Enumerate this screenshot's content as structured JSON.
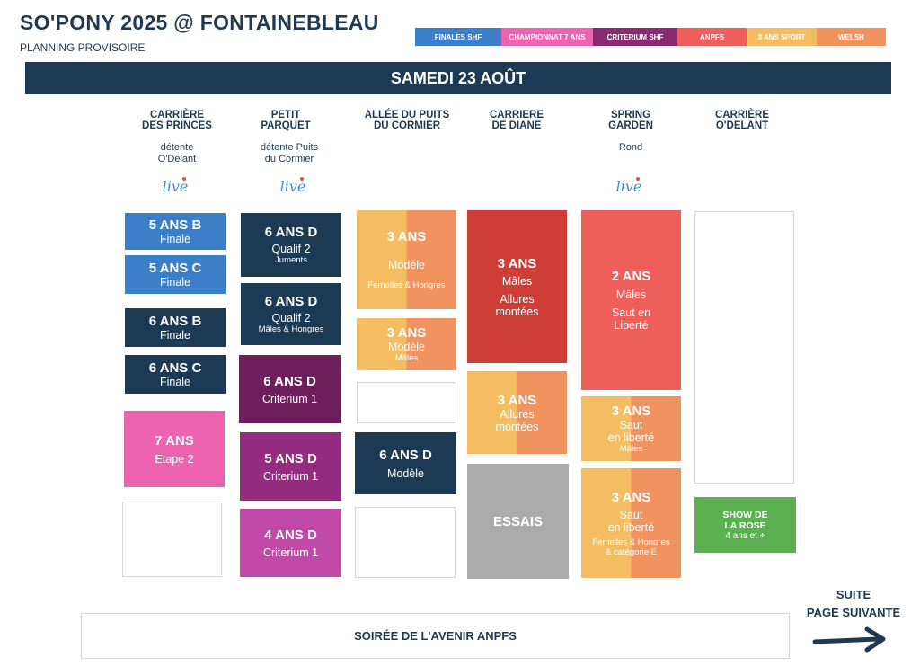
{
  "header": {
    "title": "SO'PONY 2025 @ FONTAINEBLEAU",
    "subtitle": "PLANNING PROVISOIRE"
  },
  "legend": [
    {
      "label": "FINALES SHF",
      "color": "#3b7fc8"
    },
    {
      "label": "CHAMPIONNAT 7 ANS",
      "color": "#ec63b0"
    },
    {
      "label": "CRITERIUM SHF",
      "color": "#8a2a72"
    },
    {
      "label": "ANPFS",
      "color": "#ee5f5b"
    },
    {
      "label": "3 ANS SPORT",
      "color": "#f4bd62"
    },
    {
      "label": "WELSH",
      "color": "#f0935e"
    }
  ],
  "day": "SAMEDI 23 AOÛT",
  "live_label": "live",
  "columns": [
    {
      "head1": "CARRIÈRE",
      "head2": "DES PRINCES",
      "sub1": "détente",
      "sub2": "O'Delant"
    },
    {
      "head1": "PETIT",
      "head2": "PARQUET",
      "sub1": "détente Puits",
      "sub2": "du Cormier"
    },
    {
      "head1": "ALLÉE DU PUITS",
      "head2": "DU CORMIER",
      "sub1": "",
      "sub2": ""
    },
    {
      "head1": "CARRIERE",
      "head2": "DE DIANE",
      "sub1": "",
      "sub2": ""
    },
    {
      "head1": "SPRING",
      "head2": "GARDEN",
      "sub1": "Rond",
      "sub2": ""
    },
    {
      "head1": "CARRIÈRE",
      "head2": "O'DELANT",
      "sub1": "",
      "sub2": ""
    }
  ],
  "blocks": {
    "c1": [
      {
        "title": "5 ANS  B",
        "sub": "Finale"
      },
      {
        "title": "5 ANS C",
        "sub": "Finale"
      },
      {
        "title": "6 ANS B",
        "sub": "Finale"
      },
      {
        "title": "6 ANS C",
        "sub": "Finale"
      },
      {
        "title": "7 ANS",
        "sub": "Etape 2"
      }
    ],
    "c2": [
      {
        "title": "6 ANS D",
        "sub": "Qualif 2",
        "small": "Juments"
      },
      {
        "title": "6 ANS D",
        "sub": "Qualif 2",
        "small": "Mâles & Hongres"
      },
      {
        "title": "6 ANS D",
        "sub": "Criterium 1"
      },
      {
        "title": "5 ANS D",
        "sub": "Criterium 1"
      },
      {
        "title": "4 ANS D",
        "sub": "Criterium 1"
      }
    ],
    "c3": [
      {
        "title": "3 ANS",
        "sub": "Modèle",
        "small": "Femelles & Hongres"
      },
      {
        "title": "3 ANS",
        "sub": "Modèle",
        "small": "Mâles"
      },
      {
        "title": "6 ANS D",
        "sub": "Modèle"
      }
    ],
    "c4": [
      {
        "title": "3 ANS",
        "sub1": "Mâles",
        "sub2": "Allures",
        "sub3": "montées"
      },
      {
        "title": "3 ANS",
        "sub1": "Allures",
        "sub2": "montées"
      },
      {
        "title": "ESSAIS"
      }
    ],
    "c5": [
      {
        "title": "2 ANS",
        "sub1": "Mâles",
        "sub2": "Saut en",
        "sub3": "Liberté"
      },
      {
        "title": "3 ANS",
        "sub1": "Saut",
        "sub2": "en liberté",
        "small": "Mâles"
      },
      {
        "title": "3 ANS",
        "sub1": "Saut",
        "sub2": "en liberté",
        "small1": "Femelles & Hongres",
        "small2": "& catégorie E"
      }
    ],
    "c6": [
      {
        "title1": "SHOW DE",
        "title2": "LA ROSE",
        "sub": "4 ans et +"
      }
    ]
  },
  "soiree": "SOIRÉE DE L'AVENIR ANPFS",
  "suite": {
    "line1": "SUITE",
    "line2": "PAGE SUIVANTE"
  }
}
